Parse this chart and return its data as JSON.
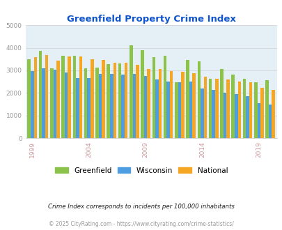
{
  "title": "Greenfield Property Crime Index",
  "years": [
    1999,
    2000,
    2001,
    2002,
    2003,
    2004,
    2005,
    2006,
    2007,
    2008,
    2009,
    2010,
    2011,
    2012,
    2013,
    2014,
    2015,
    2016,
    2017,
    2018,
    2019,
    2020
  ],
  "greenfield": [
    3500,
    3870,
    3100,
    3640,
    3640,
    3100,
    3110,
    3280,
    3310,
    4100,
    3890,
    3580,
    3640,
    2470,
    3450,
    3410,
    2620,
    3050,
    2820,
    2620,
    2470,
    2560
  ],
  "wisconsin": [
    2970,
    3090,
    3040,
    2920,
    2660,
    2660,
    2830,
    2830,
    2820,
    2840,
    2760,
    2600,
    2510,
    2460,
    2490,
    2200,
    2120,
    2000,
    1960,
    1850,
    1560,
    1490
  ],
  "national": [
    3600,
    3680,
    3440,
    3620,
    3610,
    3500,
    3450,
    3350,
    3340,
    3240,
    3050,
    3060,
    2960,
    2940,
    2890,
    2730,
    2630,
    2610,
    2510,
    2480,
    2220,
    2130
  ],
  "greenfield_color": "#8bc34a",
  "wisconsin_color": "#4d9de0",
  "national_color": "#f5a623",
  "bg_color": "#e4f0f6",
  "title_color": "#1155cc",
  "xtick_color": "#cc9999",
  "ytick_color": "#999999",
  "ylim": [
    0,
    5000
  ],
  "yticks": [
    0,
    1000,
    2000,
    3000,
    4000,
    5000
  ],
  "xtick_years": [
    1999,
    2004,
    2009,
    2014,
    2019
  ],
  "footnote1": "Crime Index corresponds to incidents per 100,000 inhabitants",
  "footnote2": "© 2025 CityRating.com - https://www.cityrating.com/crime-statistics/",
  "legend_labels": [
    "Greenfield",
    "Wisconsin",
    "National"
  ],
  "bar_width": 0.28,
  "grid_color": "#d0d0d0"
}
